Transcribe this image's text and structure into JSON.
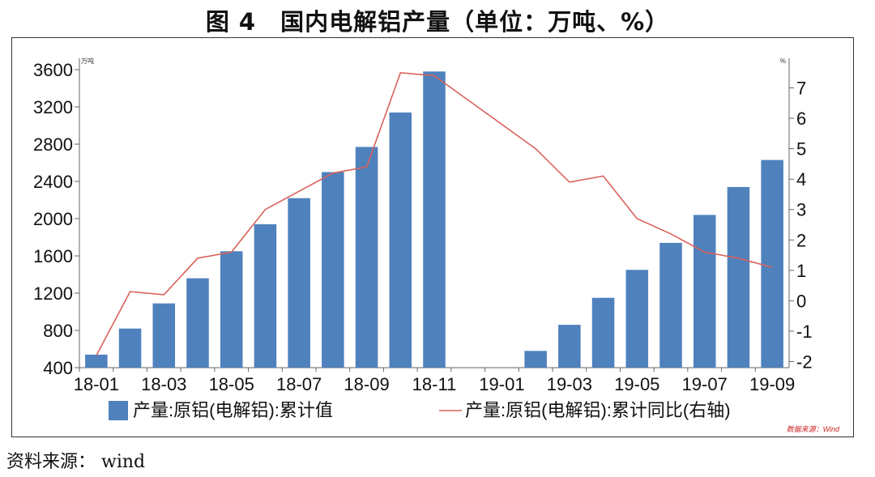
{
  "figure": {
    "title": "图 4　国内电解铝产量（单位：万吨、%）",
    "source_text": "资料来源： wind"
  },
  "chart_data": {
    "type": "bar",
    "categories": [
      "18-01",
      "18-02",
      "18-03",
      "18-04",
      "18-05",
      "18-06",
      "18-07",
      "18-08",
      "18-09",
      "18-10",
      "18-11",
      "18-12",
      "19-01",
      "19-02",
      "19-03",
      "19-04",
      "19-05",
      "19-06",
      "19-07",
      "19-08",
      "19-09"
    ],
    "x_tick_labels": [
      "18-01",
      "18-03",
      "18-05",
      "18-07",
      "18-09",
      "18-11",
      "19-01",
      "19-03",
      "19-05",
      "19-07",
      "19-09"
    ],
    "left_axis": {
      "unit": "万吨",
      "ylim": [
        400,
        3600
      ],
      "ticks": [
        400,
        800,
        1200,
        1600,
        2000,
        2400,
        2800,
        3200,
        3600
      ]
    },
    "right_axis": {
      "unit": "%",
      "ylim": [
        -2.2,
        7.6
      ],
      "ticks": [
        -2,
        -1,
        0,
        1,
        2,
        3,
        4,
        5,
        6,
        7
      ]
    },
    "series": [
      {
        "name": "产量:原铝(电解铝):累计值",
        "type": "bar",
        "axis": "left",
        "color": "#4f81bd",
        "values": [
          540,
          820,
          1090,
          1360,
          1650,
          1940,
          2220,
          2500,
          2770,
          3140,
          3580,
          null,
          null,
          580,
          860,
          1150,
          1450,
          1740,
          2040,
          2340,
          2630
        ]
      },
      {
        "name": "产量:原铝(电解铝):累计同比(右轴)",
        "type": "line",
        "axis": "right",
        "color": "#d9625b",
        "values": [
          -1.8,
          0.3,
          0.2,
          1.4,
          1.6,
          3.0,
          3.6,
          4.2,
          4.4,
          7.5,
          7.4,
          null,
          null,
          5.0,
          3.9,
          4.1,
          2.7,
          2.2,
          1.6,
          1.4,
          1.1
        ]
      }
    ],
    "legend_position": "bottom",
    "grid": false,
    "watermark": "数据来源：Wind"
  }
}
